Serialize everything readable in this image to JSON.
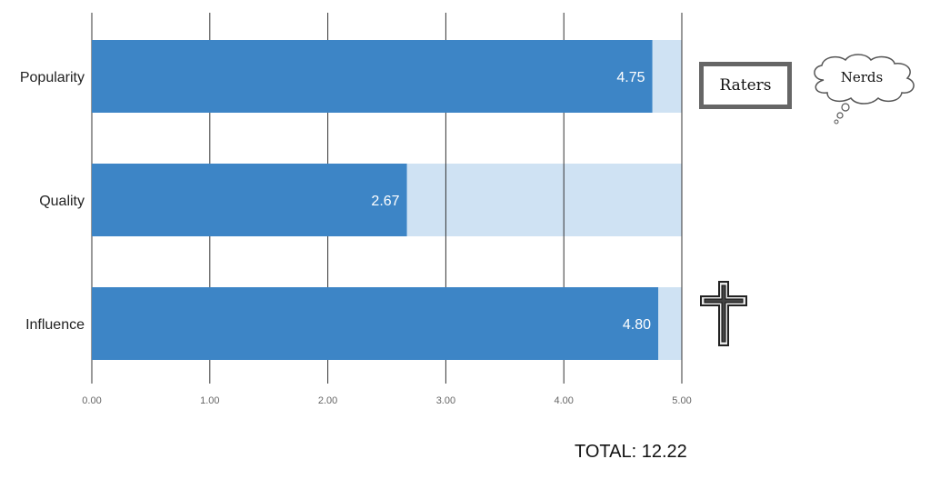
{
  "chart_data": {
    "type": "bar",
    "orientation": "horizontal",
    "categories": [
      "Popularity",
      "Quality",
      "Influence"
    ],
    "values": [
      4.75,
      2.67,
      4.8
    ],
    "data_labels": [
      "4.75",
      "2.67",
      "4.80"
    ],
    "max_value": 5.0,
    "xlim": [
      0,
      5
    ],
    "x_ticks": [
      "0.00",
      "1.00",
      "2.00",
      "3.00",
      "4.00",
      "5.00"
    ],
    "grid": true,
    "colors": {
      "bar": "#3d85c6",
      "track": "#cfe2f3",
      "grid": "#333333"
    }
  },
  "total_label": "TOTAL: 12.22",
  "annotations": {
    "raters_label": "Raters",
    "cloud_label": "Nerds",
    "cross_icon": "cross-icon"
  }
}
